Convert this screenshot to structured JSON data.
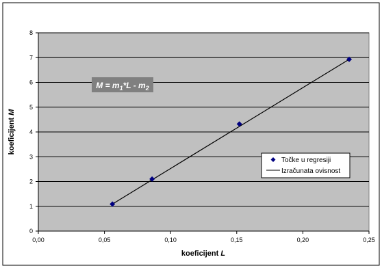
{
  "chart_data": {
    "type": "scatter",
    "xlabel_prefix": "koeficijent ",
    "xlabel_var": "L",
    "ylabel_prefix": "koeficijent ",
    "ylabel_var": "M",
    "xlim": [
      0,
      0.25
    ],
    "ylim": [
      0,
      8
    ],
    "x_ticks": [
      0,
      0.05,
      0.1,
      0.15,
      0.2,
      0.25
    ],
    "x_tick_labels": [
      "0,00",
      "0,05",
      "0,10",
      "0,15",
      "0,20",
      "0,25"
    ],
    "y_ticks": [
      0,
      1,
      2,
      3,
      4,
      5,
      6,
      7,
      8
    ],
    "y_tick_labels": [
      "0",
      "1",
      "2",
      "3",
      "4",
      "5",
      "6",
      "7",
      "8"
    ],
    "grid": "horizontal",
    "plot_background": "#c0c0c0",
    "equation": "M = m1*L - m2",
    "legend_position": "right",
    "series": [
      {
        "name": "Točke u regresiji",
        "kind": "markers",
        "marker": "diamond",
        "color": "#000080",
        "x": [
          0.056,
          0.086,
          0.152,
          0.235
        ],
        "y": [
          1.09,
          2.1,
          4.32,
          6.93
        ]
      },
      {
        "name": "Izračunata ovisnost",
        "kind": "line",
        "color": "#000000",
        "x": [
          0.056,
          0.235
        ],
        "y": [
          1.09,
          6.93
        ]
      }
    ]
  }
}
